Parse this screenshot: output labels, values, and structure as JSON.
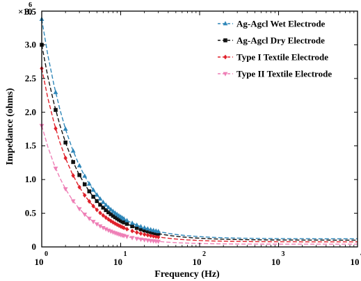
{
  "chart_data": {
    "type": "line",
    "xlabel": "Frequency (Hz)",
    "ylabel": "Impedance (ohms)",
    "x_scale": "log",
    "xlim": [
      1,
      10000
    ],
    "ylim": [
      0,
      3500000
    ],
    "y_axis_multiplier_label": "×10",
    "y_axis_multiplier_exponent": "6",
    "x_ticks": [
      {
        "value": 1,
        "base": "10",
        "exp": "0"
      },
      {
        "value": 10,
        "base": "10",
        "exp": "1"
      },
      {
        "value": 100,
        "base": "10",
        "exp": "2"
      },
      {
        "value": 1000,
        "base": "10",
        "exp": "3"
      },
      {
        "value": 10000,
        "base": "10",
        "exp": "4"
      }
    ],
    "y_ticks": [
      {
        "value": 0,
        "label": "0"
      },
      {
        "value": 500000,
        "label": "0.5"
      },
      {
        "value": 1000000,
        "label": "1.0"
      },
      {
        "value": 1500000,
        "label": "1.5"
      },
      {
        "value": 2000000,
        "label": "2.0"
      },
      {
        "value": 2500000,
        "label": "2.5"
      },
      {
        "value": 3000000,
        "label": "3.0"
      },
      {
        "value": 3500000,
        "label": "3.5"
      }
    ],
    "legend_position": "top-right",
    "series": [
      {
        "name": "Ag-Agcl Wet Electrode",
        "color": "#2e86b8",
        "marker": "triangle-up",
        "z0": 3380000,
        "p": 1.0,
        "zinf": 120000
      },
      {
        "name": "Ag-Agcl Dry Electrode",
        "color": "#111111",
        "marker": "square",
        "z0": 3000000,
        "p": 1.0,
        "zinf": 100000
      },
      {
        "name": "Type I Textile Electrode",
        "color": "#e0202a",
        "marker": "diamond",
        "z0": 2650000,
        "p": 1.05,
        "zinf": 75000
      },
      {
        "name": "Type II Textile Electrode",
        "color": "#ee7fb6",
        "marker": "triangle-down",
        "z0": 1800000,
        "p": 1.1,
        "zinf": 40000
      }
    ]
  }
}
